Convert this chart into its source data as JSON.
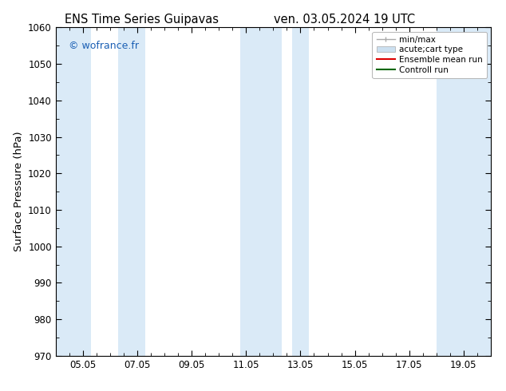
{
  "title_left": "ENS Time Series Guipavas",
  "title_right": "ven. 03.05.2024 19 UTC",
  "ylabel": "Surface Pressure (hPa)",
  "ylim": [
    970,
    1060
  ],
  "yticks": [
    970,
    980,
    990,
    1000,
    1010,
    1020,
    1030,
    1040,
    1050,
    1060
  ],
  "xtick_labels": [
    "05.05",
    "07.05",
    "09.05",
    "11.05",
    "13.05",
    "15.05",
    "17.05",
    "19.05"
  ],
  "xtick_positions": [
    2,
    4,
    6,
    8,
    10,
    12,
    14,
    16
  ],
  "xlim": [
    1,
    17
  ],
  "background_color": "#ffffff",
  "plot_bg_color": "#ffffff",
  "shaded_bands": [
    {
      "x_start": 1.0,
      "x_end": 2.3,
      "color": "#daeaf7"
    },
    {
      "x_start": 3.3,
      "x_end": 4.3,
      "color": "#daeaf7"
    },
    {
      "x_start": 7.8,
      "x_end": 9.3,
      "color": "#daeaf7"
    },
    {
      "x_start": 9.7,
      "x_end": 10.3,
      "color": "#daeaf7"
    },
    {
      "x_start": 15.0,
      "x_end": 17.0,
      "color": "#daeaf7"
    }
  ],
  "watermark_text": "© wofrance.fr",
  "watermark_color": "#1a5fb4",
  "legend_minmax_color": "#aaaaaa",
  "legend_acute_facecolor": "#cce0f0",
  "legend_acute_edgecolor": "#aaaaaa",
  "legend_ens_color": "#dd0000",
  "legend_ctrl_color": "#006600",
  "title_fontsize": 10.5,
  "tick_fontsize": 8.5,
  "ylabel_fontsize": 9.5,
  "legend_fontsize": 7.5
}
